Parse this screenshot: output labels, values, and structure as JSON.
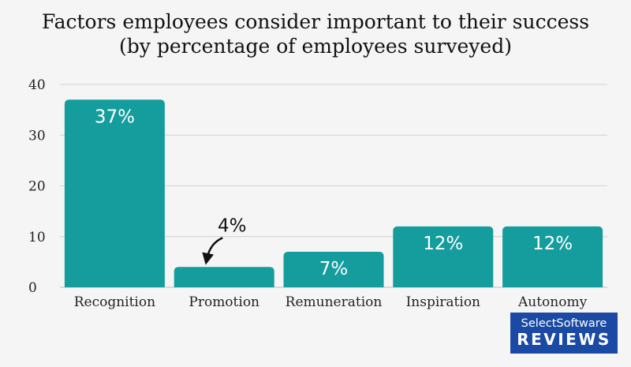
{
  "chart_data": {
    "type": "bar",
    "title_line1": "Factors employees consider important to their success",
    "title_line2": "(by percentage of employees surveyed)",
    "categories": [
      "Recognition",
      "Promotion",
      "Remuneration",
      "Inspiration",
      "Autonomy"
    ],
    "values": [
      37,
      4,
      7,
      12,
      12
    ],
    "data_labels": [
      "37%",
      "4%",
      "7%",
      "12%",
      "12%"
    ],
    "yticks": [
      0,
      10,
      20,
      30,
      40
    ],
    "ylim": [
      0,
      40
    ],
    "grid": true,
    "bar_color": "#159c9c"
  },
  "logo": {
    "line1": "SelectSoftware",
    "line2": "REVIEWS",
    "color": "#1b4aa4"
  }
}
